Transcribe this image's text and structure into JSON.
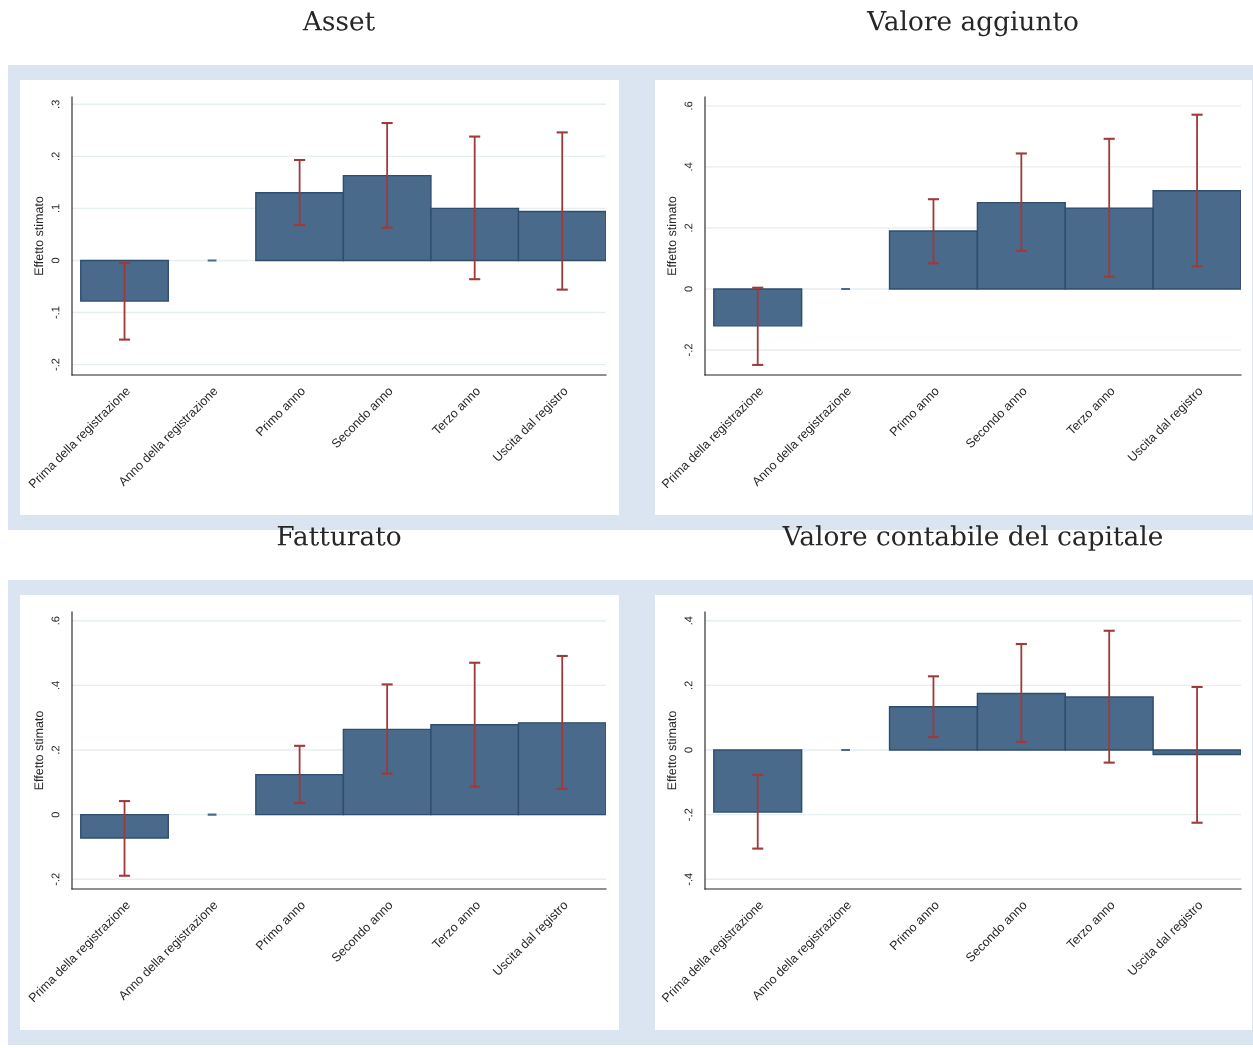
{
  "chart_data": [
    {
      "type": "bar",
      "title": "Asset",
      "ylabel": "Effetto stimato",
      "categories": [
        "Prima della registrazione",
        "Anno della registrazione",
        "Primo anno",
        "Secondo anno",
        "Terzo anno",
        "Uscita dal registro"
      ],
      "values": [
        -0.078,
        0,
        0.13,
        0.163,
        0.1,
        0.094
      ],
      "errors": [
        [
          -0.152,
          -0.005
        ],
        null,
        [
          0.068,
          0.193
        ],
        [
          0.063,
          0.264
        ],
        [
          -0.036,
          0.238
        ],
        [
          -0.056,
          0.246
        ]
      ],
      "color": "#496a8b",
      "ylim": [
        -0.22,
        0.314
      ],
      "yticks": [
        {
          "value": -0.2,
          "label": "-.2"
        },
        {
          "value": -0.1,
          "label": "-.1"
        },
        0,
        {
          "value": 0.1,
          "label": ".1"
        },
        {
          "value": 0.2,
          "label": ".2"
        },
        {
          "value": 0.3,
          "label": ".3"
        }
      ],
      "grid": "y"
    },
    {
      "type": "bar",
      "title": "Valore aggiunto",
      "ylabel": "Effetto stimato",
      "categories": [
        "Prima della registrazione",
        "Anno della registrazione",
        "Primo anno",
        "Secondo anno",
        "Terzo anno",
        "Uscita dal registro"
      ],
      "values": [
        -0.121,
        0,
        0.19,
        0.283,
        0.265,
        0.322
      ],
      "errors": [
        [
          -0.249,
          0.004
        ],
        null,
        [
          0.084,
          0.294
        ],
        [
          0.125,
          0.444
        ],
        [
          0.04,
          0.492
        ],
        [
          0.074,
          0.571
        ]
      ],
      "color": "#496a8b",
      "ylim": [
        -0.282,
        0.629
      ],
      "yticks": [
        {
          "value": -0.2,
          "label": "-.2"
        },
        0,
        {
          "value": 0.2,
          "label": ".2"
        },
        {
          "value": 0.4,
          "label": ".4"
        },
        {
          "value": 0.6,
          "label": ".6"
        }
      ],
      "grid": "y"
    },
    {
      "type": "bar",
      "title": "Fatturato",
      "ylabel": "Effetto stimato",
      "categories": [
        "Prima della registrazione",
        "Anno della registrazione",
        "Primo anno",
        "Secondo anno",
        "Terzo anno",
        "Uscita dal registro"
      ],
      "values": [
        -0.072,
        0,
        0.124,
        0.264,
        0.278,
        0.284
      ],
      "errors": [
        [
          -0.189,
          0.042
        ],
        null,
        [
          0.036,
          0.213
        ],
        [
          0.127,
          0.403
        ],
        [
          0.087,
          0.47
        ],
        [
          0.08,
          0.491
        ]
      ],
      "color": "#496a8b",
      "ylim": [
        -0.23,
        0.627
      ],
      "yticks": [
        {
          "value": -0.2,
          "label": "-.2"
        },
        0,
        {
          "value": 0.2,
          "label": ".2"
        },
        {
          "value": 0.4,
          "label": ".4"
        },
        {
          "value": 0.6,
          "label": ".6"
        }
      ],
      "grid": "y"
    },
    {
      "type": "bar",
      "title": "Valore contabile del capitale",
      "ylabel": "Effetto stimato",
      "categories": [
        "Prima della registrazione",
        "Anno della registrazione",
        "Primo anno",
        "Secondo anno",
        "Terzo anno",
        "Uscita dal registro"
      ],
      "values": [
        -0.192,
        0,
        0.134,
        0.175,
        0.164,
        -0.014
      ],
      "errors": [
        [
          -0.305,
          -0.077
        ],
        null,
        [
          0.04,
          0.228
        ],
        [
          0.025,
          0.328
        ],
        [
          -0.039,
          0.369
        ],
        [
          -0.225,
          0.195
        ]
      ],
      "color": "#496a8b",
      "ylim": [
        -0.43,
        0.427
      ],
      "yticks": [
        {
          "value": -0.4,
          "label": "-.4"
        },
        {
          "value": -0.2,
          "label": "-.2"
        },
        0,
        {
          "value": 0.2,
          "label": ".2"
        },
        {
          "value": 0.4,
          "label": ".4"
        }
      ],
      "grid": "y"
    }
  ]
}
